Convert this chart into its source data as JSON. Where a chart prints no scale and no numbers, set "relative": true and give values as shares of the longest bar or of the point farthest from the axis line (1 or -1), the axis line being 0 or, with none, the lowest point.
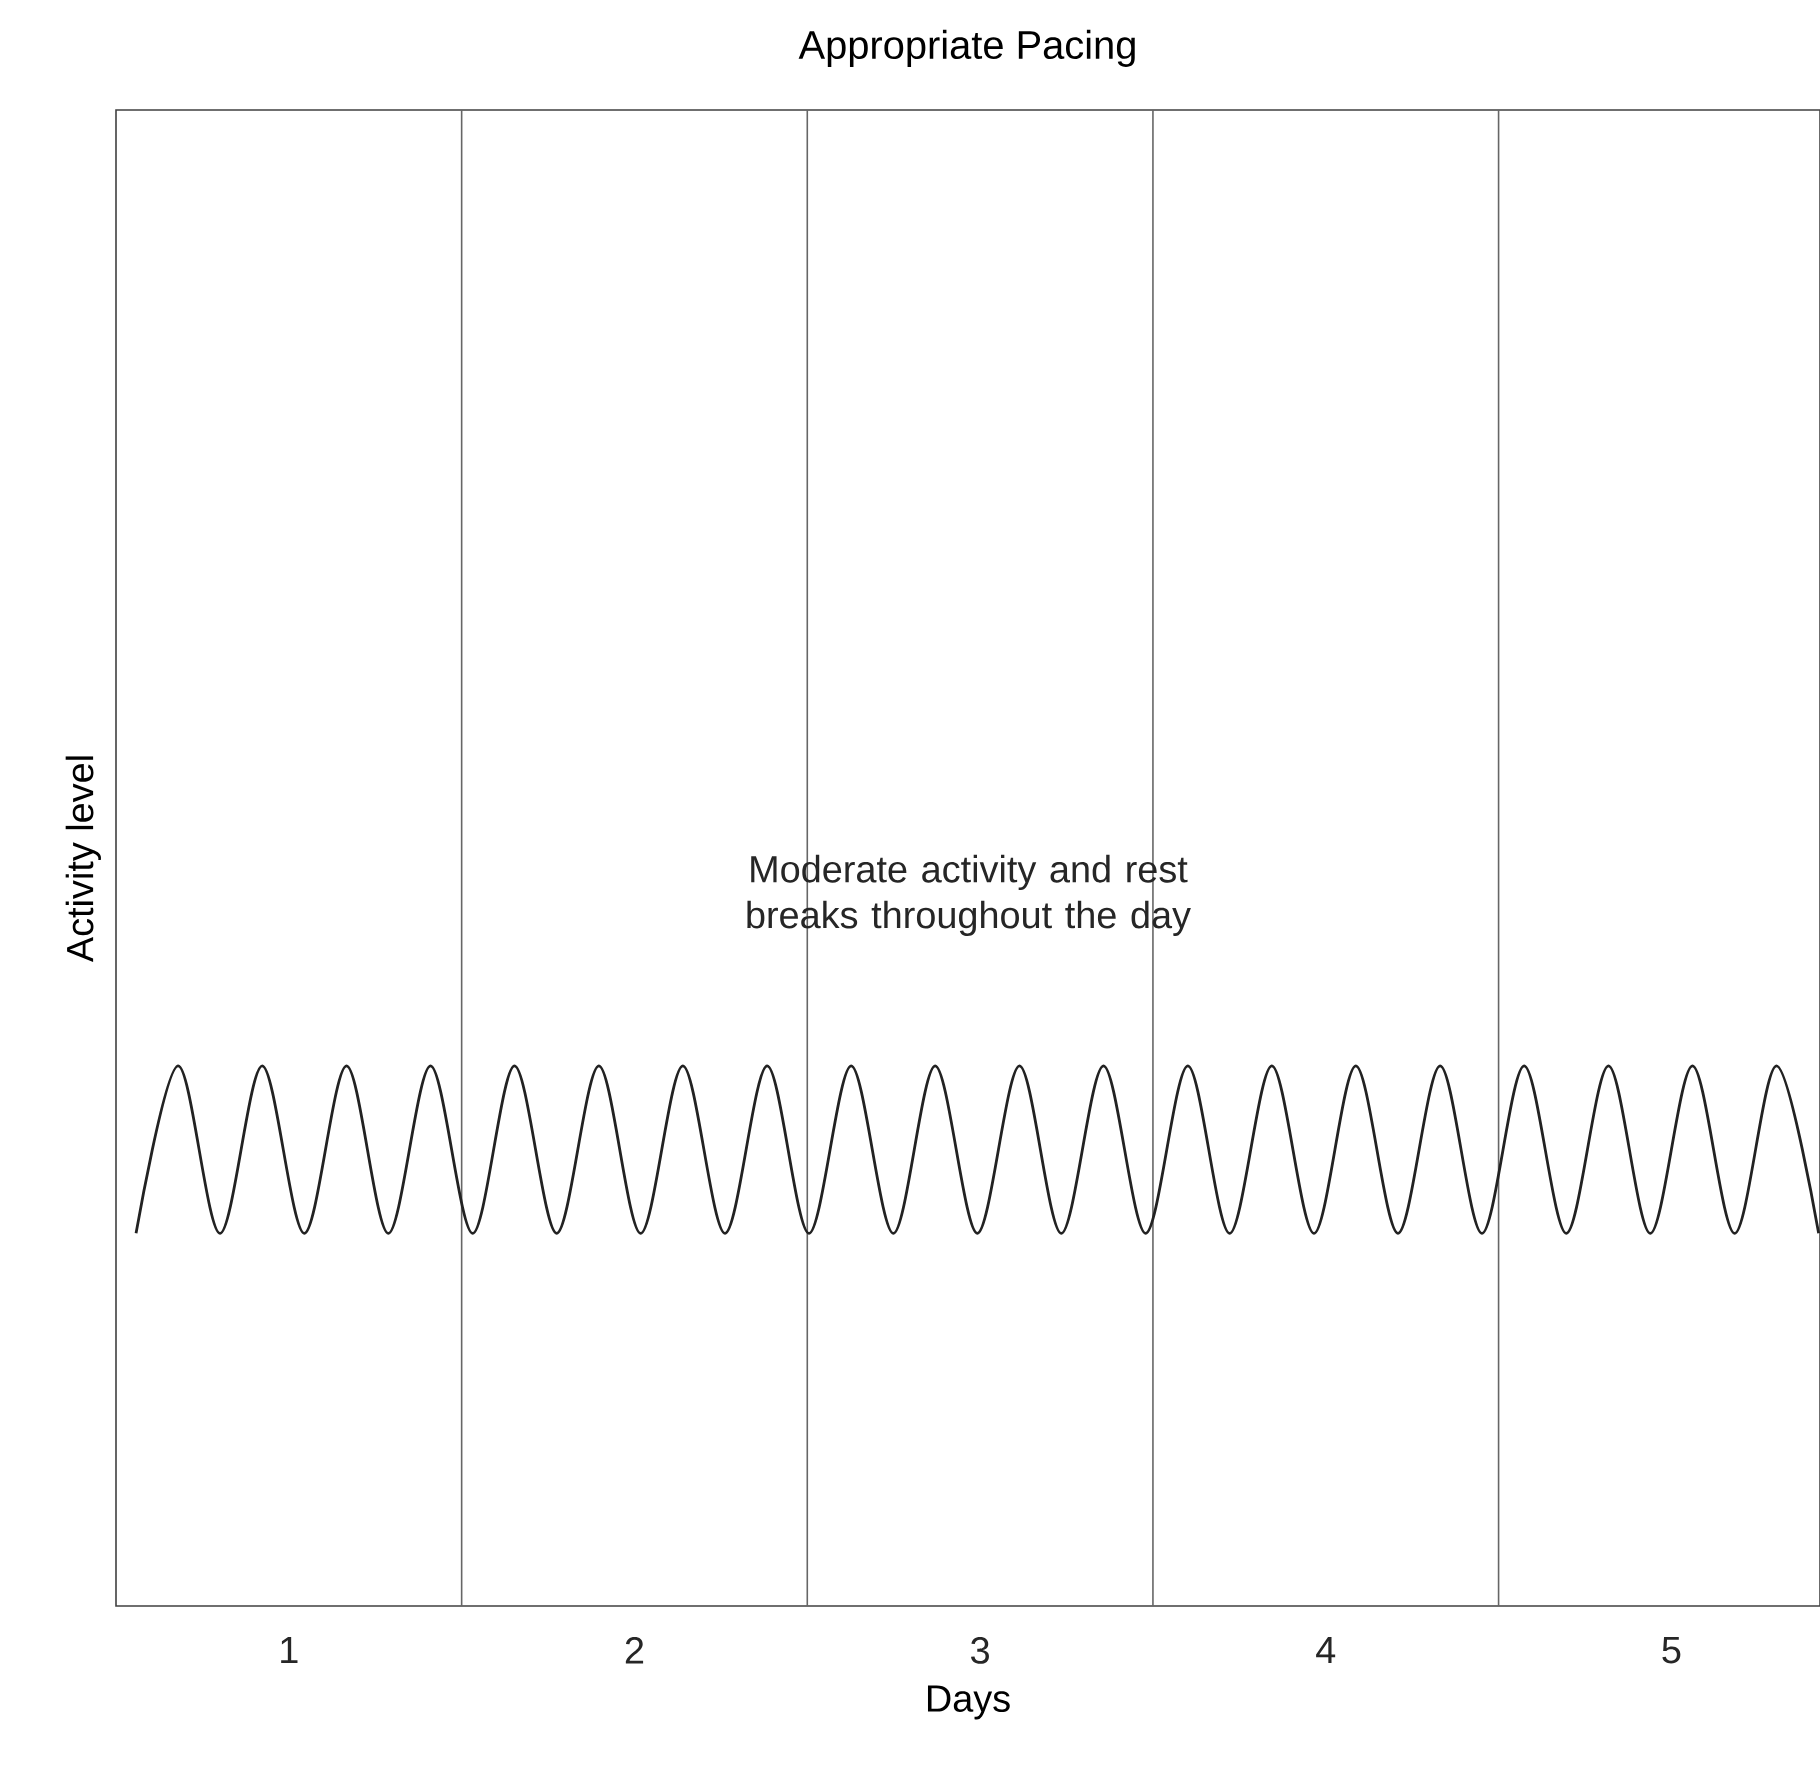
{
  "chart_data": {
    "type": "line",
    "title": "Appropriate Pacing",
    "xlabel": "Days",
    "ylabel": "Activity level",
    "relative": true,
    "xlim": [
      0.5,
      5.43
    ],
    "xticks": [
      1,
      2,
      3,
      4,
      5
    ],
    "x": [
      0.558,
      0.68,
      0.801,
      0.923,
      1.045,
      1.167,
      1.288,
      1.41,
      1.532,
      1.653,
      1.775,
      1.897,
      2.018,
      2.14,
      2.262,
      2.384,
      2.505,
      2.627,
      2.749,
      2.87,
      2.992,
      3.114,
      3.235,
      3.357,
      3.479,
      3.601,
      3.722,
      3.844,
      3.966,
      4.087,
      4.209,
      4.331,
      4.452,
      4.574,
      4.696,
      4.818,
      4.939,
      5.061,
      5.183,
      5.304,
      5.426
    ],
    "series": [
      {
        "color": "#222222",
        "line_style": "solid",
        "values": [
          0.69,
          1,
          0.69,
          1,
          0.69,
          1,
          0.69,
          1,
          0.69,
          1,
          0.69,
          1,
          0.69,
          1,
          0.69,
          1,
          0.69,
          1,
          0.69,
          1,
          0.69,
          1,
          0.69,
          1,
          0.69,
          1,
          0.69,
          1,
          0.69,
          1,
          0.69,
          1,
          0.69,
          1,
          0.69,
          1,
          0.69,
          1,
          0.69,
          1,
          0.69
        ]
      }
    ],
    "ref_lines": [
      {
        "axis": "x",
        "value": 1.5,
        "color": "#666666"
      },
      {
        "axis": "x",
        "value": 2.5,
        "color": "#666666"
      },
      {
        "axis": "x",
        "value": 3.5,
        "color": "#666666"
      },
      {
        "axis": "x",
        "value": 4.5,
        "color": "#666666"
      }
    ],
    "annotations": [
      "Moderate activity and rest breaks throughout the day"
    ],
    "grid": false,
    "marker": "none"
  }
}
